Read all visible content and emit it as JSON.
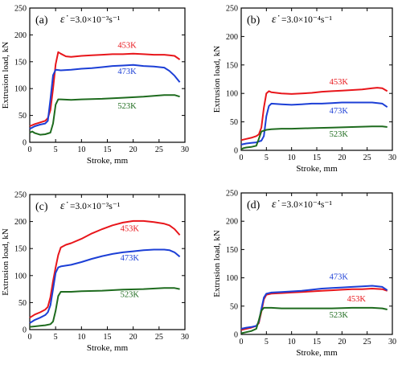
{
  "colors": {
    "453K": "#e8161b",
    "473K": "#1c3fd6",
    "523K": "#1e6b1e",
    "axis": "#000000"
  },
  "chart_data": [
    {
      "type": "line",
      "label": "(a)",
      "rate_symbol": "ε̇",
      "rate_text": "=3.0×10⁻³s⁻¹",
      "xlabel": "Stroke, mm",
      "ylabel": "Extrusion load, kN",
      "xlim": [
        0,
        30
      ],
      "ylim": [
        0,
        250
      ],
      "xticks": [
        0,
        5,
        10,
        15,
        20,
        25,
        30
      ],
      "yticks": [
        0,
        50,
        100,
        150,
        200,
        250
      ],
      "series": [
        {
          "name": "453K",
          "color_key": "453K",
          "x": [
            0,
            1,
            2,
            3,
            3.5,
            4,
            4.5,
            5,
            5.5,
            6,
            7,
            8,
            10,
            12,
            14,
            16,
            18,
            20,
            22,
            24,
            26,
            27,
            28,
            29
          ],
          "y": [
            30,
            34,
            37,
            40,
            45,
            60,
            100,
            145,
            168,
            165,
            160,
            159,
            161,
            162,
            163,
            164,
            164,
            165,
            164,
            163,
            163,
            162,
            161,
            154
          ]
        },
        {
          "name": "473K",
          "color_key": "473K",
          "x": [
            0,
            1,
            2,
            3,
            3.5,
            4,
            4.5,
            5,
            6,
            8,
            10,
            12,
            14,
            16,
            18,
            20,
            22,
            24,
            26,
            27,
            28,
            29
          ],
          "y": [
            25,
            30,
            33,
            35,
            40,
            80,
            125,
            135,
            134,
            135,
            137,
            138,
            140,
            142,
            143,
            144,
            142,
            141,
            139,
            133,
            124,
            112
          ]
        },
        {
          "name": "523K",
          "color_key": "523K",
          "x": [
            0,
            0.5,
            1,
            2,
            3,
            4,
            4.5,
            5,
            5.5,
            6,
            8,
            10,
            14,
            18,
            22,
            26,
            28,
            29
          ],
          "y": [
            18,
            20,
            17,
            14,
            15,
            18,
            35,
            70,
            80,
            80,
            79,
            80,
            81,
            83,
            85,
            88,
            88,
            85
          ]
        }
      ],
      "annotations": [
        {
          "text": "453K",
          "x": 17,
          "y": 176,
          "color_key": "453K"
        },
        {
          "text": "473K",
          "x": 17,
          "y": 127,
          "color_key": "473K"
        },
        {
          "text": "523K",
          "x": 17,
          "y": 63,
          "color_key": "523K"
        }
      ]
    },
    {
      "type": "line",
      "label": "(b)",
      "rate_symbol": "ε̇",
      "rate_text": "=3.0×10⁻⁴s⁻¹",
      "xlabel": "Stroke, mm",
      "ylabel": "Extrusion load, kN",
      "xlim": [
        0,
        30
      ],
      "ylim": [
        0,
        250
      ],
      "xticks": [
        0,
        5,
        10,
        15,
        20,
        25,
        30
      ],
      "yticks": [
        0,
        50,
        100,
        150,
        200,
        250
      ],
      "series": [
        {
          "name": "453K",
          "color_key": "453K",
          "x": [
            0,
            1,
            2,
            3,
            3.5,
            4,
            4.5,
            5,
            5.5,
            6,
            8,
            10,
            12,
            14,
            16,
            18,
            20,
            22,
            24,
            26,
            27,
            28,
            29
          ],
          "y": [
            18,
            20,
            22,
            25,
            28,
            40,
            75,
            100,
            104,
            102,
            100,
            99,
            100,
            101,
            103,
            104,
            105,
            106,
            107,
            109,
            110,
            109,
            104
          ]
        },
        {
          "name": "473K",
          "color_key": "473K",
          "x": [
            0,
            1,
            2,
            3,
            4,
            4.5,
            5,
            5.5,
            6,
            8,
            10,
            12,
            14,
            16,
            18,
            20,
            22,
            24,
            26,
            28,
            29
          ],
          "y": [
            10,
            12,
            13,
            14,
            17,
            25,
            60,
            78,
            82,
            81,
            80,
            81,
            82,
            82,
            83,
            84,
            84,
            84,
            84,
            82,
            76
          ]
        },
        {
          "name": "523K",
          "color_key": "523K",
          "x": [
            0,
            0.5,
            1,
            2,
            3,
            3.5,
            4,
            5,
            6,
            8,
            10,
            14,
            18,
            22,
            26,
            28,
            29
          ],
          "y": [
            2,
            4,
            5,
            6,
            8,
            20,
            33,
            36,
            37,
            38,
            38,
            39,
            40,
            41,
            42,
            42,
            41
          ]
        }
      ],
      "annotations": [
        {
          "text": "453K",
          "x": 17.5,
          "y": 116,
          "color_key": "453K"
        },
        {
          "text": "473K",
          "x": 17.5,
          "y": 65,
          "color_key": "473K"
        },
        {
          "text": "523K",
          "x": 17.5,
          "y": 24,
          "color_key": "523K"
        }
      ]
    },
    {
      "type": "line",
      "label": "(c)",
      "rate_symbol": "ε̇",
      "rate_text": "=3.0×10⁻³s⁻¹",
      "xlabel": "Stroke, mm",
      "ylabel": "Extrusion load, kN",
      "xlim": [
        0,
        30
      ],
      "ylim": [
        0,
        250
      ],
      "xticks": [
        0,
        5,
        10,
        15,
        20,
        25,
        30
      ],
      "yticks": [
        0,
        50,
        100,
        150,
        200,
        250
      ],
      "series": [
        {
          "name": "453K",
          "color_key": "453K",
          "x": [
            0,
            1,
            2,
            3,
            3.5,
            4,
            4.5,
            5,
            5.5,
            6,
            7,
            8,
            10,
            12,
            14,
            16,
            18,
            20,
            22,
            24,
            26,
            27,
            28,
            29
          ],
          "y": [
            22,
            28,
            32,
            37,
            42,
            60,
            90,
            115,
            138,
            152,
            157,
            160,
            168,
            178,
            186,
            193,
            198,
            201,
            201,
            199,
            196,
            193,
            186,
            175
          ]
        },
        {
          "name": "473K",
          "color_key": "473K",
          "x": [
            0,
            1,
            2,
            3,
            3.5,
            4,
            4.5,
            5,
            5.5,
            6,
            8,
            10,
            12,
            14,
            16,
            18,
            20,
            22,
            24,
            26,
            27,
            28,
            29
          ],
          "y": [
            12,
            18,
            22,
            27,
            32,
            45,
            75,
            105,
            115,
            117,
            120,
            125,
            131,
            136,
            140,
            143,
            145,
            147,
            148,
            148,
            147,
            143,
            135
          ]
        },
        {
          "name": "523K",
          "color_key": "523K",
          "x": [
            0,
            1,
            2,
            3,
            4,
            4.5,
            5,
            5.5,
            6,
            8,
            10,
            14,
            18,
            22,
            26,
            28,
            29
          ],
          "y": [
            5,
            6,
            7,
            8,
            10,
            15,
            35,
            62,
            70,
            70,
            71,
            72,
            74,
            75,
            77,
            77,
            75
          ]
        }
      ],
      "annotations": [
        {
          "text": "453K",
          "x": 17.5,
          "y": 182,
          "color_key": "453K"
        },
        {
          "text": "473K",
          "x": 17.5,
          "y": 128,
          "color_key": "473K"
        },
        {
          "text": "523K",
          "x": 17.5,
          "y": 60,
          "color_key": "523K"
        }
      ]
    },
    {
      "type": "line",
      "label": "(d)",
      "rate_symbol": "ε̇",
      "rate_text": "=3.0×10⁻⁴s⁻¹",
      "xlabel": "Stroke, mm",
      "ylabel": "Extrusion load, kN",
      "xlim": [
        0,
        30
      ],
      "ylim": [
        0,
        250
      ],
      "xticks": [
        0,
        5,
        10,
        15,
        20,
        25,
        30
      ],
      "yticks": [
        0,
        50,
        100,
        150,
        200,
        250
      ],
      "series": [
        {
          "name": "453K",
          "color_key": "453K",
          "x": [
            0,
            1,
            2,
            3,
            3.5,
            4,
            4.5,
            5,
            6,
            8,
            10,
            12,
            14,
            16,
            18,
            20,
            22,
            24,
            26,
            28,
            29
          ],
          "y": [
            8,
            10,
            12,
            15,
            20,
            40,
            62,
            70,
            72,
            73,
            74,
            75,
            76,
            77,
            78,
            79,
            80,
            80,
            81,
            80,
            77
          ]
        },
        {
          "name": "473K",
          "color_key": "473K",
          "x": [
            0,
            1,
            2,
            3,
            3.5,
            4,
            4.5,
            5,
            6,
            8,
            10,
            12,
            14,
            16,
            18,
            20,
            22,
            24,
            26,
            28,
            29
          ],
          "y": [
            10,
            12,
            13,
            15,
            22,
            45,
            65,
            72,
            74,
            75,
            76,
            77,
            79,
            81,
            82,
            83,
            84,
            85,
            86,
            84,
            78
          ]
        },
        {
          "name": "523K",
          "color_key": "523K",
          "x": [
            0,
            1,
            2,
            3,
            3.5,
            4,
            4.5,
            5,
            6,
            8,
            10,
            14,
            18,
            22,
            26,
            28,
            29
          ],
          "y": [
            2,
            4,
            6,
            10,
            25,
            42,
            47,
            47,
            47,
            46,
            46,
            46,
            46,
            47,
            47,
            46,
            44
          ]
        }
      ],
      "annotations": [
        {
          "text": "473K",
          "x": 17.5,
          "y": 97,
          "color_key": "473K"
        },
        {
          "text": "453K",
          "x": 21,
          "y": 58,
          "color_key": "453K"
        },
        {
          "text": "523K",
          "x": 17.5,
          "y": 30,
          "color_key": "523K"
        }
      ]
    }
  ]
}
